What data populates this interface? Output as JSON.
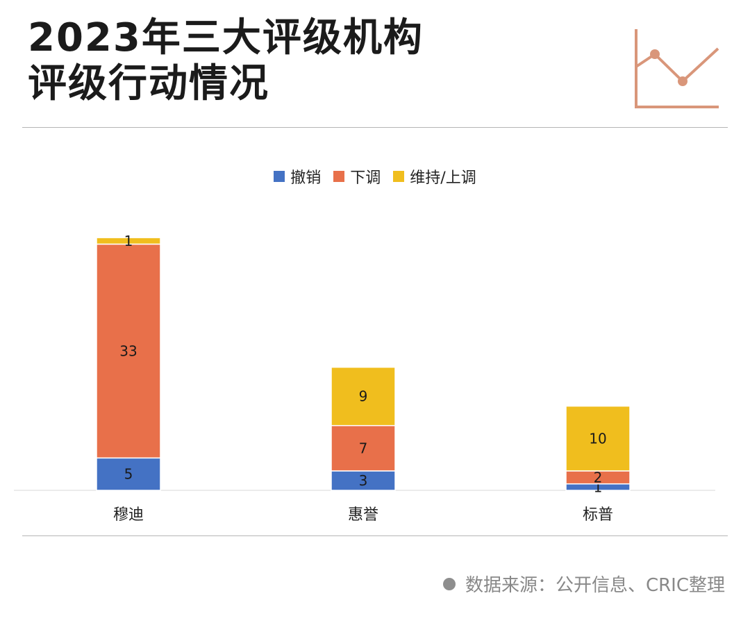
{
  "header": {
    "title_line1": "2023年三大评级机构",
    "title_line2": "评级行动情况"
  },
  "colors": {
    "withdraw": "#4472C4",
    "downgrade": "#E8704A",
    "maintain": "#F0BE1E",
    "icon": "#D9967A"
  },
  "chart_data": {
    "type": "bar",
    "stacked": true,
    "categories": [
      "穆迪",
      "惠誉",
      "标普"
    ],
    "series": [
      {
        "name": "撤销",
        "values": [
          5,
          3,
          1
        ]
      },
      {
        "name": "下调",
        "values": [
          33,
          7,
          2
        ]
      },
      {
        "name": "维持/上调",
        "values": [
          1,
          9,
          10
        ]
      }
    ],
    "title": "",
    "xlabel": "",
    "ylabel": "",
    "ylim": [
      0,
      40
    ],
    "legend_position": "top",
    "grid": false
  },
  "footer": {
    "source": "数据来源：公开信息、CRIC整理"
  }
}
